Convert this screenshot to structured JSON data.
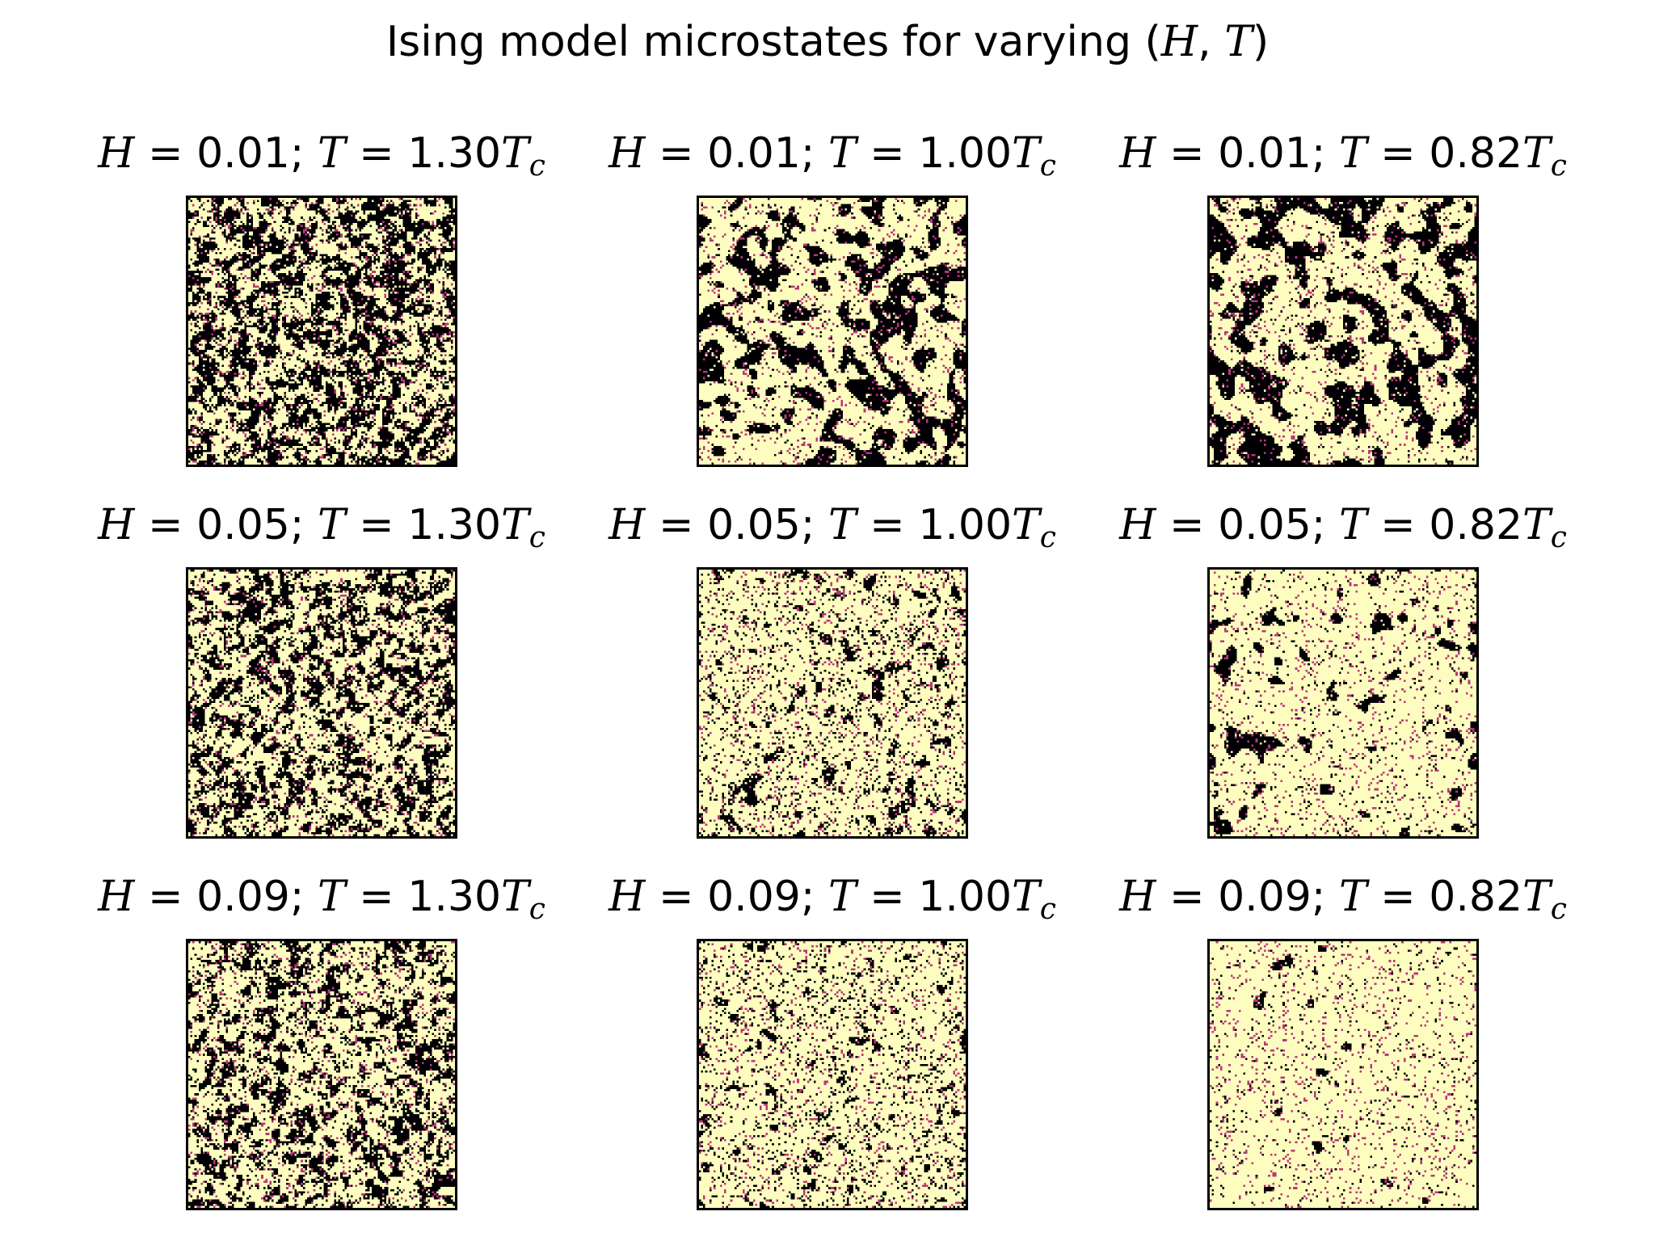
{
  "title": {
    "prefix": "Ising model microstates for varying (",
    "H": "H",
    "comma": ", ",
    "T": "T",
    "suffix": ")"
  },
  "chart_data": {
    "type": "heatmap",
    "grid": "3x3",
    "colormap": "magma",
    "colors": {
      "spin_down": "#000004",
      "spin_mid": "#b73779",
      "spin_up": "#fcfdbf"
    },
    "axes_ticks": false,
    "fields_H": [
      0.01,
      0.05,
      0.09
    ],
    "temperatures_T_over_Tc": [
      1.3,
      1.0,
      0.82
    ],
    "panels": [
      {
        "row": 0,
        "col": 0,
        "H_label": "H",
        "H": "0.01",
        "T_label": "T",
        "T": "1.30",
        "Tsym": "T",
        "sub": "c",
        "up_fraction": 0.52,
        "cluster_scale": 2
      },
      {
        "row": 0,
        "col": 1,
        "H_label": "H",
        "H": "0.01",
        "T_label": "T",
        "T": "1.00",
        "Tsym": "T",
        "sub": "c",
        "up_fraction": 0.66,
        "cluster_scale": 7
      },
      {
        "row": 0,
        "col": 2,
        "H_label": "H",
        "H": "0.01",
        "T_label": "T",
        "T": "0.82",
        "Tsym": "T",
        "sub": "c",
        "up_fraction": 0.62,
        "cluster_scale": 9
      },
      {
        "row": 1,
        "col": 0,
        "H_label": "H",
        "H": "0.05",
        "T_label": "T",
        "T": "1.30",
        "Tsym": "T",
        "sub": "c",
        "up_fraction": 0.62,
        "cluster_scale": 2
      },
      {
        "row": 1,
        "col": 1,
        "H_label": "H",
        "H": "0.05",
        "T_label": "T",
        "T": "1.00",
        "Tsym": "T",
        "sub": "c",
        "up_fraction": 0.9,
        "cluster_scale": 4
      },
      {
        "row": 1,
        "col": 2,
        "H_label": "H",
        "H": "0.05",
        "T_label": "T",
        "T": "0.82",
        "Tsym": "T",
        "sub": "c",
        "up_fraction": 0.91,
        "cluster_scale": 7
      },
      {
        "row": 2,
        "col": 0,
        "H_label": "H",
        "H": "0.09",
        "T_label": "T",
        "T": "1.30",
        "Tsym": "T",
        "sub": "c",
        "up_fraction": 0.68,
        "cluster_scale": 2
      },
      {
        "row": 2,
        "col": 1,
        "H_label": "H",
        "H": "0.09",
        "T_label": "T",
        "T": "1.00",
        "Tsym": "T",
        "sub": "c",
        "up_fraction": 0.94,
        "cluster_scale": 3
      },
      {
        "row": 2,
        "col": 2,
        "H_label": "H",
        "H": "0.09",
        "T_label": "T",
        "T": "0.82",
        "Tsym": "T",
        "sub": "c",
        "up_fraction": 0.985,
        "cluster_scale": 6
      }
    ]
  }
}
